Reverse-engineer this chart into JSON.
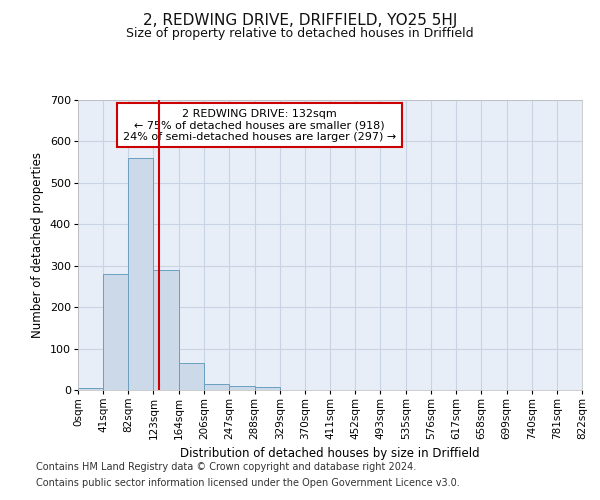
{
  "title": "2, REDWING DRIVE, DRIFFIELD, YO25 5HJ",
  "subtitle": "Size of property relative to detached houses in Driffield",
  "xlabel": "Distribution of detached houses by size in Driffield",
  "ylabel": "Number of detached properties",
  "footnote1": "Contains HM Land Registry data © Crown copyright and database right 2024.",
  "footnote2": "Contains public sector information licensed under the Open Government Licence v3.0.",
  "bin_edges": [
    0,
    41,
    82,
    123,
    164,
    206,
    247,
    288,
    329,
    370,
    411,
    452,
    493,
    535,
    576,
    617,
    658,
    699,
    740,
    781,
    822
  ],
  "bin_labels": [
    "0sqm",
    "41sqm",
    "82sqm",
    "123sqm",
    "164sqm",
    "206sqm",
    "247sqm",
    "288sqm",
    "329sqm",
    "370sqm",
    "411sqm",
    "452sqm",
    "493sqm",
    "535sqm",
    "576sqm",
    "617sqm",
    "658sqm",
    "699sqm",
    "740sqm",
    "781sqm",
    "822sqm"
  ],
  "bar_heights": [
    5,
    280,
    560,
    290,
    65,
    15,
    10,
    8,
    0,
    0,
    0,
    0,
    0,
    0,
    0,
    0,
    0,
    0,
    0,
    0
  ],
  "bar_color": "#ccd9e8",
  "bar_edge_color": "#6a9fc0",
  "grid_color": "#c8d4e4",
  "background_color": "#e8eef8",
  "property_line_x": 132,
  "property_line_color": "#cc0000",
  "annotation_line1": "2 REDWING DRIVE: 132sqm",
  "annotation_line2": "← 75% of detached houses are smaller (918)",
  "annotation_line3": "24% of semi-detached houses are larger (297) →",
  "annotation_box_color": "#ffffff",
  "annotation_box_edge": "#cc0000",
  "ylim": [
    0,
    700
  ],
  "yticks": [
    0,
    100,
    200,
    300,
    400,
    500,
    600,
    700
  ]
}
